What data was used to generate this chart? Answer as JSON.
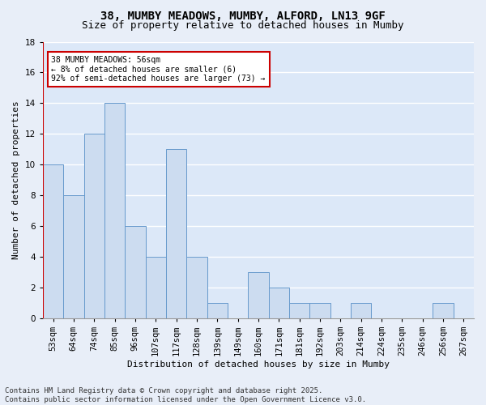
{
  "title1": "38, MUMBY MEADOWS, MUMBY, ALFORD, LN13 9GF",
  "title2": "Size of property relative to detached houses in Mumby",
  "xlabel": "Distribution of detached houses by size in Mumby",
  "ylabel": "Number of detached properties",
  "categories": [
    "53sqm",
    "64sqm",
    "74sqm",
    "85sqm",
    "96sqm",
    "107sqm",
    "117sqm",
    "128sqm",
    "139sqm",
    "149sqm",
    "160sqm",
    "171sqm",
    "181sqm",
    "192sqm",
    "203sqm",
    "214sqm",
    "224sqm",
    "235sqm",
    "246sqm",
    "256sqm",
    "267sqm"
  ],
  "values": [
    10,
    8,
    12,
    14,
    6,
    4,
    11,
    4,
    1,
    0,
    3,
    2,
    1,
    1,
    0,
    1,
    0,
    0,
    0,
    1,
    0
  ],
  "bar_color": "#ccdcf0",
  "bar_edge_color": "#6699cc",
  "highlight_line_color": "#cc0000",
  "annotation_text": "38 MUMBY MEADOWS: 56sqm\n← 8% of detached houses are smaller (6)\n92% of semi-detached houses are larger (73) →",
  "annotation_box_color": "#ffffff",
  "annotation_box_edge_color": "#cc0000",
  "ylim": [
    0,
    18
  ],
  "yticks": [
    0,
    2,
    4,
    6,
    8,
    10,
    12,
    14,
    16,
    18
  ],
  "footer_text": "Contains HM Land Registry data © Crown copyright and database right 2025.\nContains public sector information licensed under the Open Government Licence v3.0.",
  "fig_bg_color": "#e8eef8",
  "plot_bg_color": "#dce8f8",
  "grid_color": "#ffffff",
  "title_fontsize": 10,
  "subtitle_fontsize": 9,
  "axis_label_fontsize": 8,
  "tick_fontsize": 7.5,
  "footer_fontsize": 6.5
}
